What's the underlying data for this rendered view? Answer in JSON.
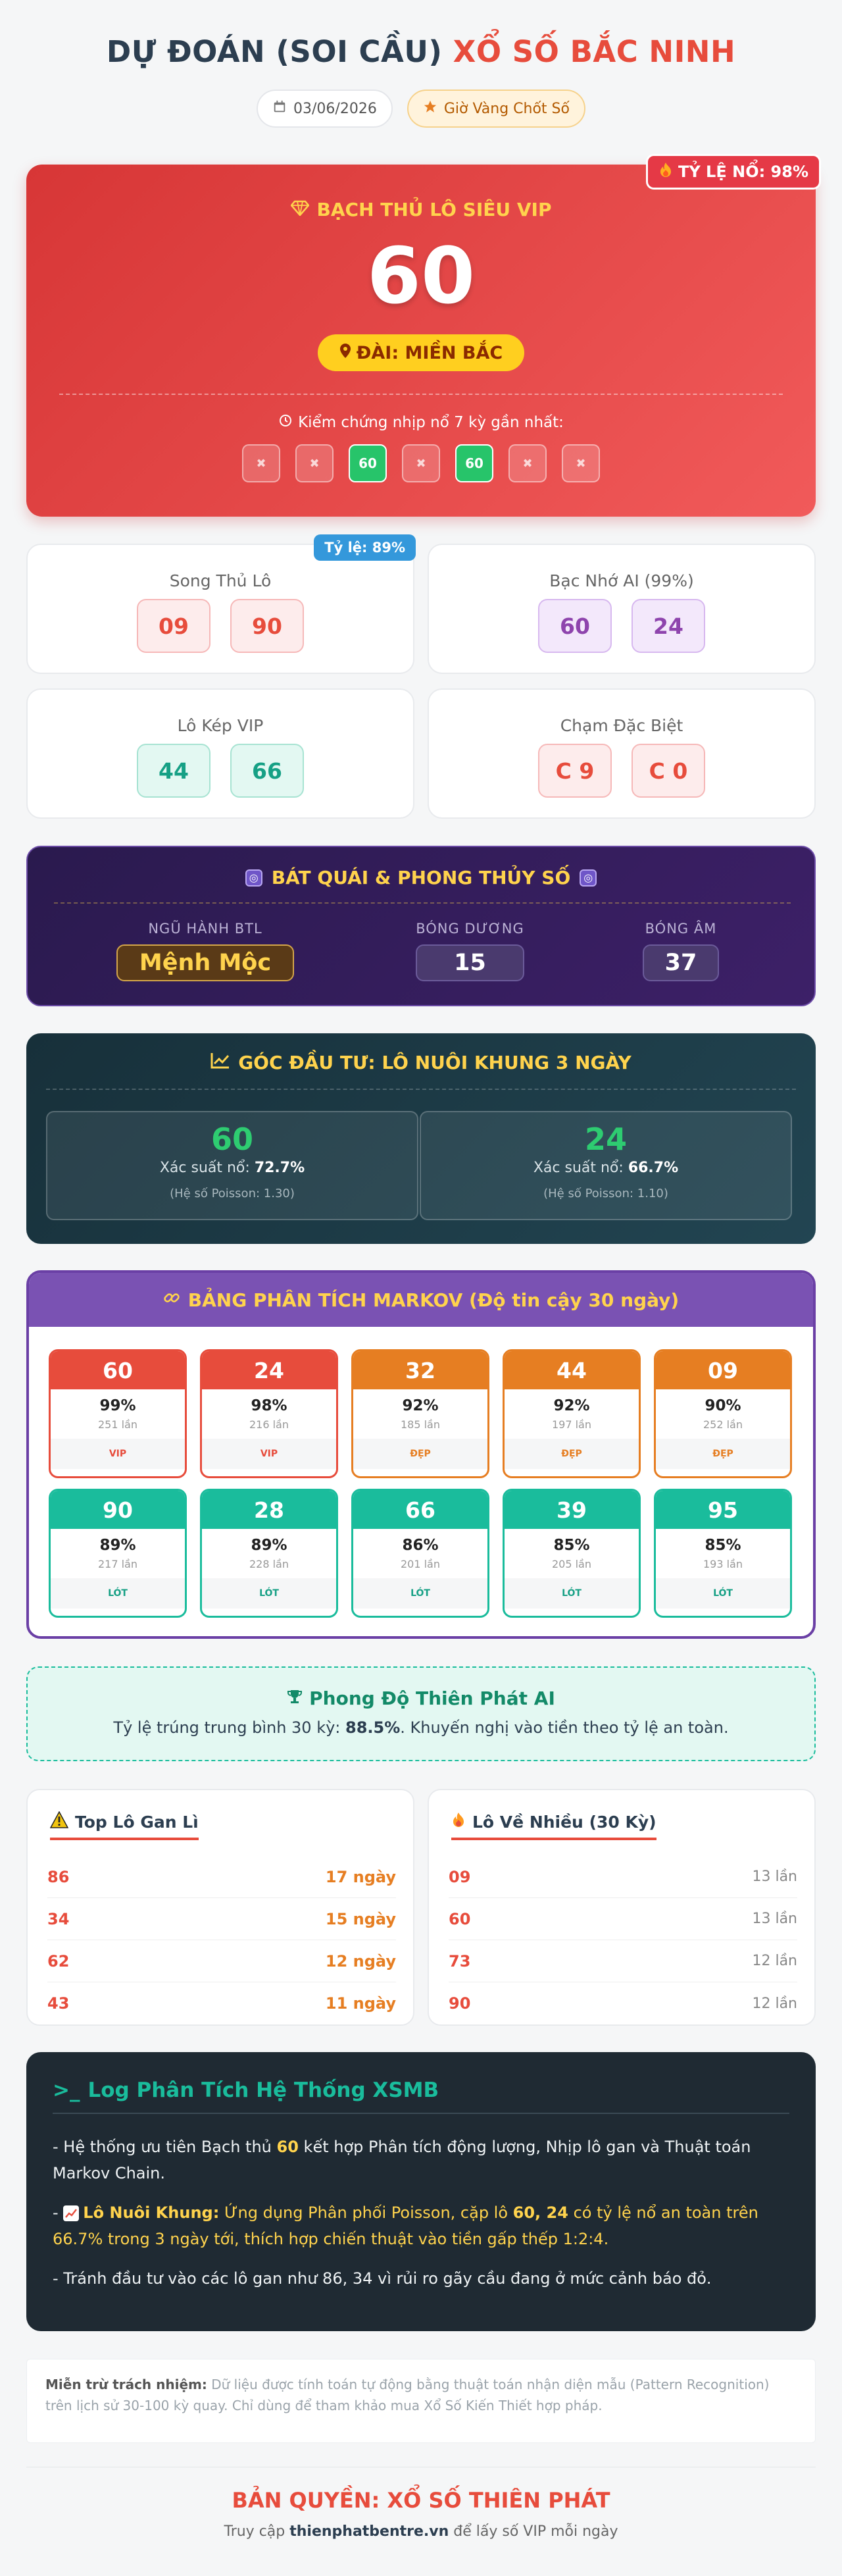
{
  "header": {
    "title_main": "DỰ ĐOÁN (SOI CẦU) ",
    "title_accent": "XỔ SỐ BẮC NINH",
    "date": "03/06/2026",
    "golden_hour": "Giờ Vàng Chốt Số"
  },
  "hero": {
    "badge": "TỶ LỆ NỔ: 98%",
    "heading": "BẠCH THỦ LÔ SIÊU VIP",
    "number": "60",
    "station": "ĐÀI: MIỀN BẮC",
    "verify_label": "Kiểm chứng nhịp nổ 7 kỳ gần nhất:",
    "history": [
      {
        "text": "✖",
        "hit": false
      },
      {
        "text": "✖",
        "hit": false
      },
      {
        "text": "60",
        "hit": true
      },
      {
        "text": "✖",
        "hit": false
      },
      {
        "text": "60",
        "hit": true
      },
      {
        "text": "✖",
        "hit": false
      },
      {
        "text": "✖",
        "hit": false
      }
    ]
  },
  "cards": {
    "song_thu": {
      "title": "Song Thủ Lô",
      "badge": "Tỷ lệ: 89%",
      "nums": [
        "09",
        "90"
      ]
    },
    "bac_nho": {
      "title": "Bạc Nhớ AI (99%)",
      "nums": [
        "60",
        "24"
      ]
    },
    "lo_kep": {
      "title": "Lô Kép VIP",
      "nums": [
        "44",
        "66"
      ]
    },
    "cham": {
      "title": "Chạm Đặc Biệt",
      "nums": [
        "C 9",
        "C 0"
      ]
    }
  },
  "bat_quai": {
    "title": "BÁT QUÁI & PHONG THỦY SỐ",
    "icon": "◎",
    "ngu_hanh_label": "NGŨ HÀNH BTL",
    "ngu_hanh_value": "Mệnh Mộc",
    "bong_duong_label": "BÓNG DƯƠNG",
    "bong_duong_value": "15",
    "bong_am_label": "BÓNG ÂM",
    "bong_am_value": "37"
  },
  "investment": {
    "title": "GÓC ĐẦU TƯ: LÔ NUÔI KHUNG 3 NGÀY",
    "prob_label": "Xác suất nổ:",
    "items": [
      {
        "num": "60",
        "prob": "72.7%",
        "poisson": "(Hệ số Poisson: 1.30)"
      },
      {
        "num": "24",
        "prob": "66.7%",
        "poisson": "(Hệ số Poisson: 1.10)"
      }
    ]
  },
  "markov": {
    "title": "BẢNG PHÂN TÍCH MARKOV (Độ tin cậy 30 ngày)",
    "cells": [
      {
        "num": "60",
        "pct": "99%",
        "count": "251 lần",
        "tag": "VIP",
        "tone": "red"
      },
      {
        "num": "24",
        "pct": "98%",
        "count": "216 lần",
        "tag": "VIP",
        "tone": "red"
      },
      {
        "num": "32",
        "pct": "92%",
        "count": "185 lần",
        "tag": "ĐẸP",
        "tone": "orange"
      },
      {
        "num": "44",
        "pct": "92%",
        "count": "197 lần",
        "tag": "ĐẸP",
        "tone": "orange"
      },
      {
        "num": "09",
        "pct": "90%",
        "count": "252 lần",
        "tag": "ĐẸP",
        "tone": "orange"
      },
      {
        "num": "90",
        "pct": "89%",
        "count": "217 lần",
        "tag": "LÓT",
        "tone": "teal"
      },
      {
        "num": "28",
        "pct": "89%",
        "count": "228 lần",
        "tag": "LÓT",
        "tone": "teal"
      },
      {
        "num": "66",
        "pct": "86%",
        "count": "201 lần",
        "tag": "LÓT",
        "tone": "teal"
      },
      {
        "num": "39",
        "pct": "85%",
        "count": "205 lần",
        "tag": "LÓT",
        "tone": "teal"
      },
      {
        "num": "95",
        "pct": "85%",
        "count": "193 lần",
        "tag": "LÓT",
        "tone": "teal"
      }
    ]
  },
  "form": {
    "title": "Phong Độ Thiên Phát AI",
    "text_before": "Tỷ lệ trúng trung bình 30 kỳ: ",
    "rate": "88.5%",
    "text_after": ". Khuyến nghị vào tiền theo tỷ lệ an toàn."
  },
  "top_gan": {
    "title": "Top Lô Gan Lì",
    "rows": [
      {
        "num": "86",
        "value": "17 ngày"
      },
      {
        "num": "34",
        "value": "15 ngày"
      },
      {
        "num": "62",
        "value": "12 ngày"
      },
      {
        "num": "43",
        "value": "11 ngày"
      }
    ]
  },
  "lo_ve": {
    "title": "Lô Về Nhiều (30 Kỳ)",
    "rows": [
      {
        "num": "09",
        "value": "13 lần"
      },
      {
        "num": "60",
        "value": "13 lần"
      },
      {
        "num": "73",
        "value": "12 lần"
      },
      {
        "num": "90",
        "value": "12 lần"
      }
    ]
  },
  "log": {
    "prompt": ">_",
    "title": "Log Phân Tích Hệ Thống XSMB",
    "p1_a": "- Hệ thống ưu tiên Bạch thủ ",
    "p1_num": "60",
    "p1_b": " kết hợp Phân tích động lượng, Nhịp lô gan và Thuật toán Markov Chain.",
    "p2_dash": "- ",
    "p2_label": "Lô Nuôi Khung:",
    "p2_a": " Ứng dụng Phân phối Poisson, cặp lô ",
    "p2_nums": "60, 24",
    "p2_b": " có tỷ lệ nổ an toàn trên 66.7% trong 3 ngày tới, thích hợp chiến thuật vào tiền gấp thếp 1:2:4.",
    "p3": "- Tránh đầu tư vào các lô gan như 86, 34 vì rủi ro gãy cầu đang ở mức cảnh báo đỏ."
  },
  "disclaimer": {
    "label": "Miễn trừ trách nhiệm:",
    "text": " Dữ liệu được tính toán tự động bằng thuật toán nhận diện mẫu (Pattern Recognition) trên lịch sử 30-100 kỳ quay. Chỉ dùng để tham khảo mua Xổ Số Kiến Thiết hợp pháp."
  },
  "footer": {
    "title": "BẢN QUYỀN: XỔ SỐ THIÊN PHÁT",
    "text_before": "Truy cập ",
    "site": "thienphatbentre.vn",
    "text_after": " để lấy số VIP mỗi ngày"
  }
}
